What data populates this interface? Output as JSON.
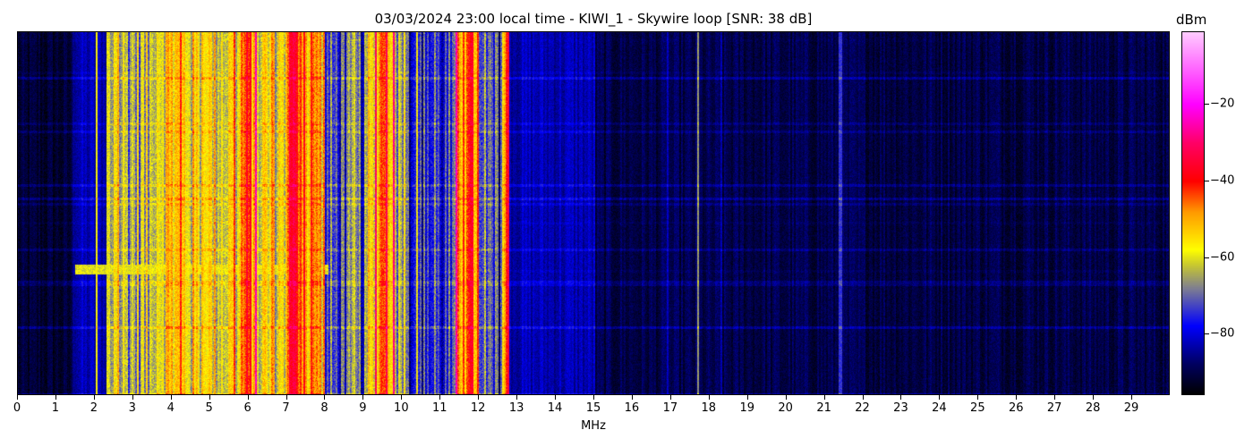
{
  "chart_data": {
    "type": "heatmap",
    "title": "03/03/2024 23:00 local time - KIWI_1 - Skywire loop [SNR: 38 dB]",
    "xlabel": "MHz",
    "xlim": [
      0,
      30
    ],
    "x_ticks": [
      "0",
      "1",
      "2",
      "3",
      "4",
      "5",
      "6",
      "7",
      "8",
      "9",
      "10",
      "11",
      "12",
      "13",
      "14",
      "15",
      "16",
      "17",
      "18",
      "19",
      "20",
      "21",
      "22",
      "23",
      "24",
      "25",
      "26",
      "27",
      "28",
      "29"
    ],
    "colorbar": {
      "label": "dBm",
      "range": [
        -96,
        -1
      ],
      "ticks": [
        -20,
        -40,
        -60,
        -80
      ],
      "tick_labels": [
        "−20",
        "−40",
        "−60",
        "−80"
      ],
      "colormap": [
        {
          "value": -96,
          "color": "#000000"
        },
        {
          "value": -88,
          "color": "#000060"
        },
        {
          "value": -78,
          "color": "#0000ff"
        },
        {
          "value": -68,
          "color": "#808090"
        },
        {
          "value": -62,
          "color": "#c8c830"
        },
        {
          "value": -58,
          "color": "#ffff00"
        },
        {
          "value": -48,
          "color": "#ff9900"
        },
        {
          "value": -40,
          "color": "#ff0000"
        },
        {
          "value": -30,
          "color": "#ff0066"
        },
        {
          "value": -20,
          "color": "#ff00ff"
        },
        {
          "value": -1,
          "color": "#ffccff"
        }
      ]
    },
    "band_levels_dbm": [
      {
        "from": 0,
        "to": 1.4,
        "level": -92
      },
      {
        "from": 1.4,
        "to": 2.3,
        "level": -83
      },
      {
        "from": 2.3,
        "to": 3.5,
        "level": -64
      },
      {
        "from": 3.5,
        "to": 4.5,
        "level": -55
      },
      {
        "from": 4.5,
        "to": 5.8,
        "level": -58
      },
      {
        "from": 5.8,
        "to": 6.2,
        "level": -46
      },
      {
        "from": 6.2,
        "to": 7.0,
        "level": -58
      },
      {
        "from": 7.0,
        "to": 7.5,
        "level": -41
      },
      {
        "from": 7.5,
        "to": 8.0,
        "level": -52
      },
      {
        "from": 8.0,
        "to": 9.1,
        "level": -74
      },
      {
        "from": 9.1,
        "to": 9.3,
        "level": -60
      },
      {
        "from": 9.3,
        "to": 9.8,
        "level": -46
      },
      {
        "from": 9.8,
        "to": 10.2,
        "level": -63
      },
      {
        "from": 10.2,
        "to": 11.4,
        "level": -77
      },
      {
        "from": 11.4,
        "to": 12.0,
        "level": -46
      },
      {
        "from": 12.0,
        "to": 12.6,
        "level": -78
      },
      {
        "from": 12.6,
        "to": 12.8,
        "level": -52
      },
      {
        "from": 12.8,
        "to": 15.0,
        "level": -83
      },
      {
        "from": 15.0,
        "to": 30.0,
        "level": -90
      }
    ],
    "narrow_carriers_mhz": [
      {
        "freq": 2.05,
        "level": -58
      },
      {
        "freq": 15.0,
        "level": -80
      },
      {
        "freq": 16.9,
        "level": -82
      },
      {
        "freq": 17.7,
        "level": -66
      },
      {
        "freq": 18.3,
        "level": -83
      },
      {
        "freq": 21.4,
        "level": -74
      }
    ]
  }
}
